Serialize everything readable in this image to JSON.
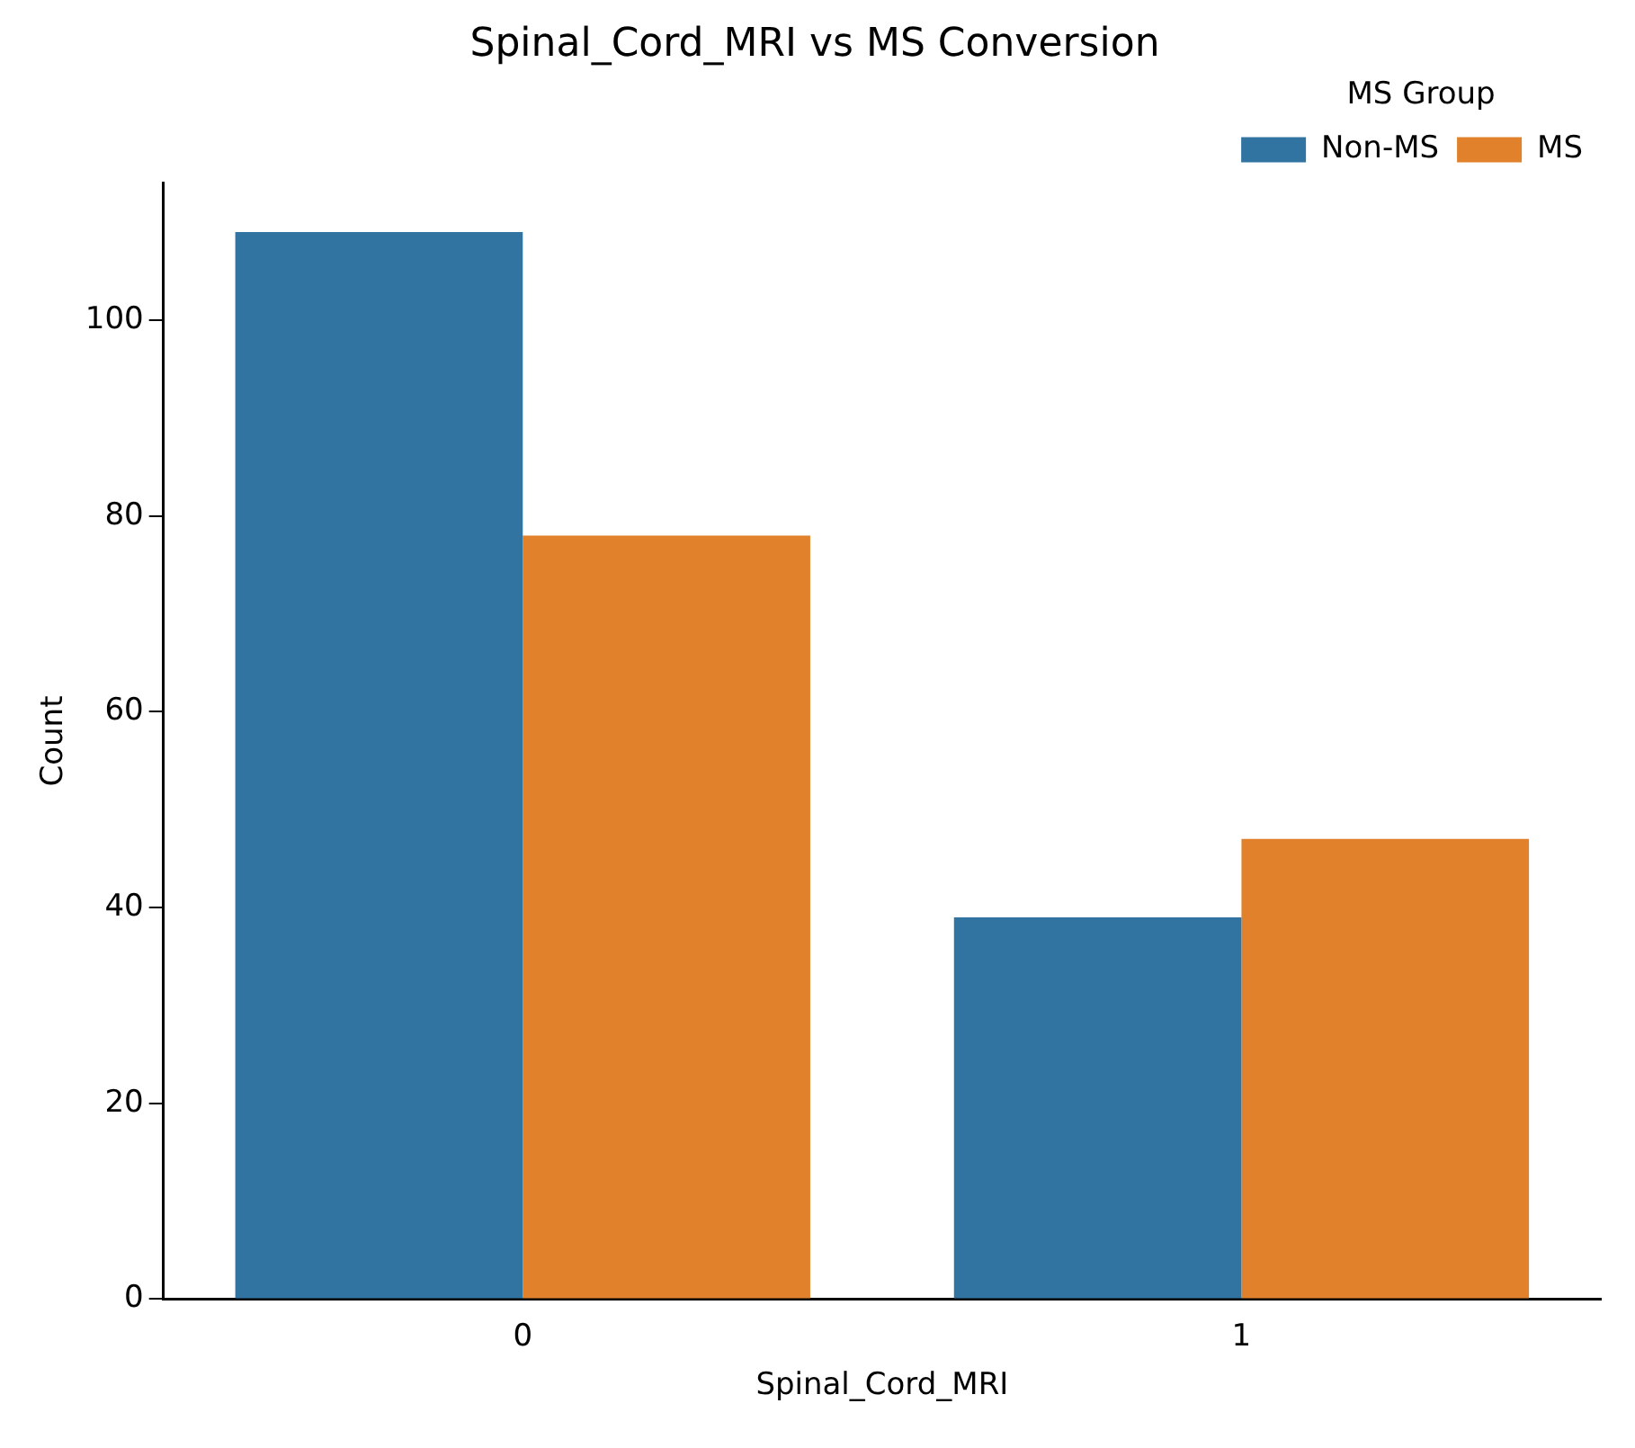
{
  "chart_data": {
    "type": "bar",
    "title": "Spinal_Cord_MRI vs MS Conversion",
    "xlabel": "Spinal_Cord_MRI",
    "ylabel": "Count",
    "legend_title": "MS Group",
    "categories": [
      "0",
      "1"
    ],
    "series": [
      {
        "name": "Non-MS",
        "color": "#3274a1",
        "values": [
          109,
          39
        ]
      },
      {
        "name": "MS",
        "color": "#e1812c",
        "values": [
          78,
          47
        ]
      }
    ],
    "ylim": [
      0,
      114
    ],
    "yticks": [
      0,
      20,
      40,
      60,
      80,
      100
    ],
    "grid": false,
    "legend": "top right"
  }
}
